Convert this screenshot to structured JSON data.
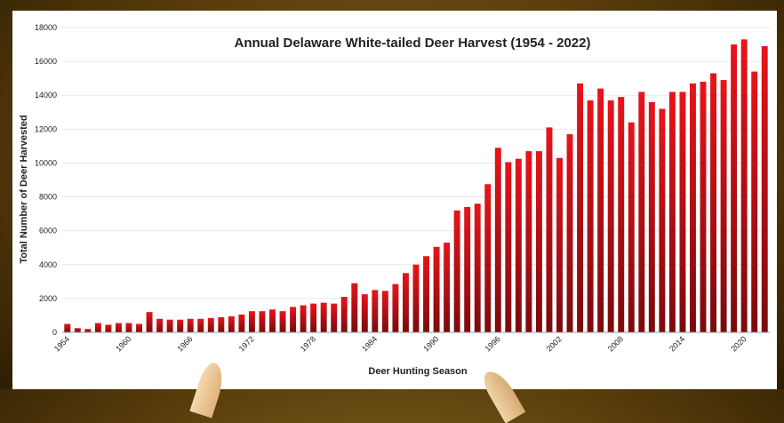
{
  "colors": {
    "bar_top": "#e8141a",
    "bar_bottom": "#7a0a0c",
    "grid": "#e3eaf2",
    "axis": "#9a9a9a",
    "text": "#222222"
  },
  "chart_data": {
    "type": "bar",
    "title": "Annual Delaware White-tailed Deer Harvest (1954 - 2022)",
    "xlabel": "Deer Hunting Season",
    "ylabel": "Total Number of Deer Harvested",
    "ylim": [
      0,
      18000
    ],
    "yticks": [
      "0",
      "2000",
      "4000",
      "6000",
      "8000",
      "10000",
      "12000",
      "14000",
      "16000",
      "18000"
    ],
    "xticks": [
      "1954",
      "1960",
      "1966",
      "1972",
      "1978",
      "1984",
      "1990",
      "1996",
      "2002",
      "2008",
      "2014",
      "2020"
    ],
    "grid": true,
    "legend": "none",
    "categories": [
      "1954",
      "1955",
      "1956",
      "1957",
      "1958",
      "1959",
      "1960",
      "1961",
      "1962",
      "1963",
      "1964",
      "1965",
      "1966",
      "1967",
      "1968",
      "1969",
      "1970",
      "1971",
      "1972",
      "1973",
      "1974",
      "1975",
      "1976",
      "1977",
      "1978",
      "1979",
      "1980",
      "1981",
      "1982",
      "1983",
      "1984",
      "1985",
      "1986",
      "1987",
      "1988",
      "1989",
      "1990",
      "1991",
      "1992",
      "1993",
      "1994",
      "1995",
      "1996",
      "1997",
      "1998",
      "1999",
      "2000",
      "2001",
      "2002",
      "2003",
      "2004",
      "2005",
      "2006",
      "2007",
      "2008",
      "2009",
      "2010",
      "2011",
      "2012",
      "2013",
      "2014",
      "2015",
      "2016",
      "2017",
      "2018",
      "2019",
      "2020",
      "2021",
      "2022"
    ],
    "values": [
      500,
      250,
      200,
      550,
      450,
      550,
      550,
      500,
      1200,
      800,
      750,
      750,
      800,
      800,
      850,
      900,
      950,
      1050,
      1250,
      1250,
      1350,
      1250,
      1500,
      1600,
      1700,
      1750,
      1700,
      2100,
      2900,
      2250,
      2500,
      2450,
      2850,
      3500,
      4000,
      4500,
      5050,
      5300,
      7200,
      7400,
      7600,
      8750,
      10900,
      10050,
      10250,
      10700,
      10700,
      12100,
      10300,
      11700,
      14700,
      13700,
      14400,
      13700,
      13900,
      12400,
      14200,
      13600,
      13200,
      14200,
      14200,
      14700,
      14800,
      15300,
      14900,
      17000,
      17300,
      15400,
      16900
    ]
  }
}
